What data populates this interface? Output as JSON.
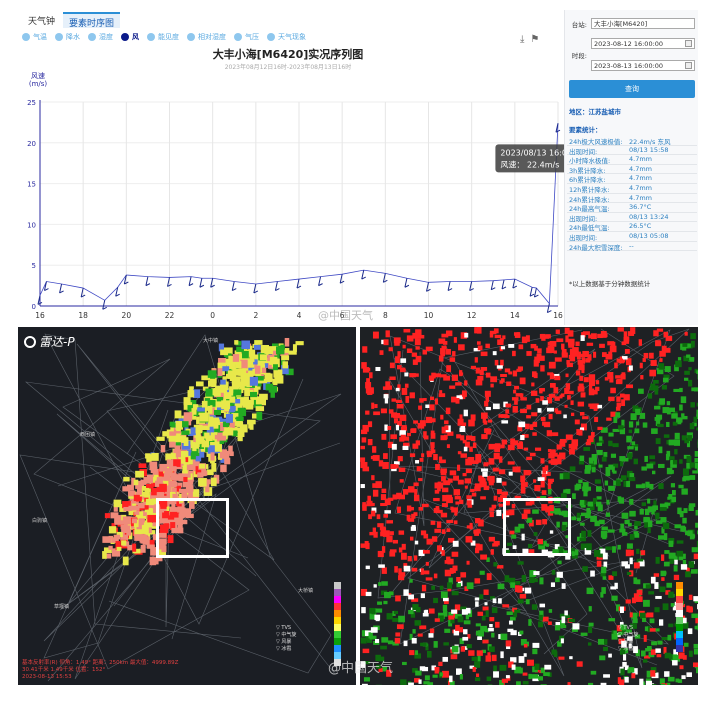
{
  "tabs": [
    "天气钟",
    "要素时序图"
  ],
  "elements": [
    {
      "label": "气温",
      "active": false
    },
    {
      "label": "降水",
      "active": false
    },
    {
      "label": "湿度",
      "active": false
    },
    {
      "label": "风",
      "active": true
    },
    {
      "label": "能见度",
      "active": false
    },
    {
      "label": "相对湿度",
      "active": false
    },
    {
      "label": "气压",
      "active": false
    },
    {
      "label": "天气现象",
      "active": false
    }
  ],
  "chart_data": {
    "type": "line",
    "title": "大丰小海[M6420]实况序列图",
    "subtitle": "2023年08月12日16时-2023年08月13日16时",
    "ylabel": "风速\n(m/s)",
    "ylim": [
      0,
      25
    ],
    "yticks": [
      0,
      5,
      10,
      15,
      20,
      25
    ],
    "xticks": [
      "16",
      "18",
      "20",
      "22",
      "0",
      "2",
      "4",
      "6",
      "8",
      "10",
      "12",
      "14",
      "16"
    ],
    "xlim": [
      0,
      24
    ],
    "grid": true,
    "series": [
      {
        "x": [
          0,
          0.3,
          1.0,
          2.0,
          3.0,
          3.6,
          4.0,
          5.0,
          6.0,
          7.0,
          7.5,
          8.0,
          9.0,
          10.0,
          11.0,
          12.0,
          13.0,
          14.0,
          15.0,
          16.0,
          17.0,
          18.0,
          19.0,
          20.0,
          21.0,
          21.5,
          22.0,
          22.8,
          23.0,
          23.6,
          24.0
        ],
        "values": [
          1.3,
          3.0,
          2.7,
          2.2,
          0.7,
          2.3,
          3.8,
          3.6,
          3.5,
          3.6,
          3.4,
          3.4,
          3.0,
          2.7,
          3.0,
          3.3,
          3.6,
          3.9,
          4.4,
          4.0,
          3.4,
          2.9,
          3.0,
          3.0,
          3.1,
          3.2,
          3.3,
          2.3,
          2.2,
          0.3,
          22.4
        ]
      }
    ],
    "tooltip": {
      "time": "2023/08/13 16:00",
      "label": "风速：",
      "value": "22.4m/s"
    }
  },
  "panel": {
    "station_label": "台站:",
    "station_value": "大丰小海[M6420]",
    "time_label": "时段:",
    "time_start": "2023-08-12 16:00:00",
    "time_end": "2023-08-13 16:00:00",
    "query_button": "查询",
    "region": "地区：江苏盐城市",
    "stats_title": "要素统计：",
    "stats": [
      {
        "k": "24h极大风速极值:",
        "v": "22.4m/s 东风"
      },
      {
        "k": "出现时间:",
        "v": "08/13 15:58"
      },
      {
        "k": "小时降水极值:",
        "v": "4.7mm"
      },
      {
        "k": "3h累计降水:",
        "v": "4.7mm"
      },
      {
        "k": "6h累计降水:",
        "v": "4.7mm"
      },
      {
        "k": "12h累计降水:",
        "v": "4.7mm"
      },
      {
        "k": "24h累计降水:",
        "v": "4.7mm"
      },
      {
        "k": "24h最高气温:",
        "v": "36.7°C"
      },
      {
        "k": "出现时间:",
        "v": "08/13 13:24"
      },
      {
        "k": "24h最低气温:",
        "v": "26.5°C"
      },
      {
        "k": "出现时间:",
        "v": "08/13 05:08"
      },
      {
        "k": "24h最大积雪深度:",
        "v": "--"
      }
    ],
    "note": "*以上数据基于分钟数据统计"
  },
  "watermark_top": "@中国天气",
  "watermark_bottom": "@中国天气",
  "radar": {
    "logo_text": "雷达-P",
    "info_lines": [
      "基本反射率(R) 仰角：1.49° 距离：250km 最大值：4999.89Z",
      "         30.41千米   1.49千米  位置：152°",
      "2023-08-13 15:53"
    ],
    "map_labels": [
      "大中镇",
      "西团镇",
      "草堰镇",
      "大桥镇",
      "白驹镇"
    ],
    "legend_left": [
      "TVS",
      "中气旋",
      "风暴",
      "冰雹"
    ],
    "legend_right": [
      "TVS",
      "中气旋",
      "风暴",
      "冰雹"
    ],
    "colors": {
      "red": "#ff2222",
      "pink": "#f08a7a",
      "yellow": "#e8e84a",
      "green": "#22aa22",
      "darkgreen": "#0d6b0d",
      "blue": "#5577dd"
    }
  }
}
